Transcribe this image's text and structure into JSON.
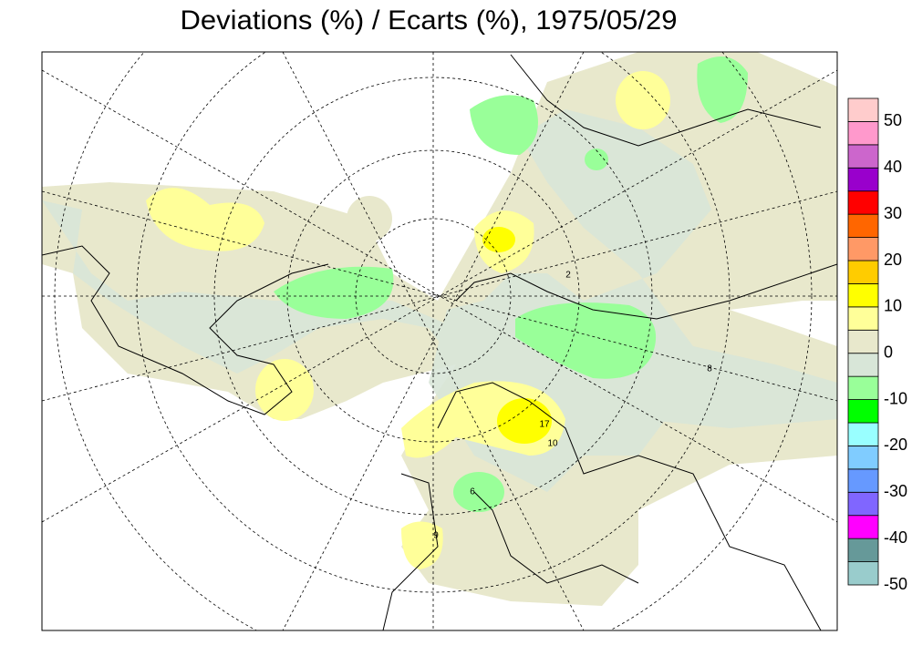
{
  "title": "Deviations (%) / Ecarts (%), 1975/05/29",
  "map_labels": [
    "17",
    "10",
    "9",
    "6",
    "2",
    "8"
  ],
  "colorbar": {
    "boundaries": [
      -50,
      -45,
      -40,
      -35,
      -30,
      -25,
      -20,
      -15,
      -10,
      -5,
      0,
      5,
      10,
      15,
      20,
      25,
      30,
      35,
      40,
      45,
      50,
      55
    ],
    "colors": [
      "#99cccc",
      "#669999",
      "#ff00ff",
      "#8066ff",
      "#6699ff",
      "#80ccff",
      "#99ffff",
      "#00ff00",
      "#99ff99",
      "#d8e6d8",
      "#e8e8cc",
      "#ffff99",
      "#ffff00",
      "#ffcc00",
      "#ff9966",
      "#ff6600",
      "#ff0000",
      "#9900cc",
      "#cc66cc",
      "#ff99cc",
      "#ffcccc"
    ],
    "ticks": [
      -50,
      -40,
      -30,
      -20,
      -10,
      0,
      10,
      20,
      30,
      40,
      50
    ]
  }
}
